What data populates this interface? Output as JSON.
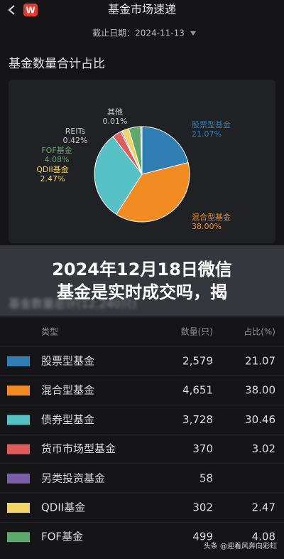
{
  "header": {
    "title": "基金市场速递",
    "date_label": "截止日期：2024-11-13"
  },
  "section_title": "基金数量合计占比",
  "chart_data": {
    "type": "pie",
    "categories": [
      "股票型基金",
      "混合型基金",
      "债券型基金",
      "货币市场型基金",
      "另类投资基金",
      "QDII基金",
      "FOF基金",
      "REITs",
      "其他"
    ],
    "values": [
      21.07,
      38.0,
      30.46,
      3.02,
      0.47,
      2.47,
      4.08,
      0.42,
      0.01
    ],
    "colors": [
      "#2f7fb5",
      "#f28c22",
      "#56c2c6",
      "#e05b5e",
      "#7a5fa8",
      "#f0d566",
      "#5fa86b",
      "#b0b0b0",
      "#8a8a8a"
    ],
    "annotations": [
      {
        "name": "其他",
        "label": "0.01%"
      },
      {
        "name": "REITs",
        "label": "0.42%"
      },
      {
        "name": "FOF基金",
        "label": "4.08%"
      },
      {
        "name": "QDII基金",
        "label": "2.47%"
      },
      {
        "name": "股票型基金",
        "label": "21.07%"
      },
      {
        "name": "混合型基金",
        "label": "38.00%"
      }
    ]
  },
  "overlay": {
    "line1": "2024年12月18日微信",
    "line2": "基金是实时成交吗，揭",
    "behind": "基金数量总计(12,240只)"
  },
  "table": {
    "columns": [
      "类型",
      "数量(只)",
      "占比(%)"
    ],
    "rows": [
      {
        "color": "#2f7fb5",
        "cells": [
          "股票型基金",
          "2,579",
          "21.07"
        ]
      },
      {
        "color": "#f28c22",
        "cells": [
          "混合型基金",
          "4,651",
          "38.00"
        ]
      },
      {
        "color": "#56c2c6",
        "cells": [
          "债券型基金",
          "3,728",
          "30.46"
        ]
      },
      {
        "color": "#e05b5e",
        "cells": [
          "货币市场型基金",
          "370",
          "3.02"
        ]
      },
      {
        "color": "#7a5fa8",
        "cells": [
          "另类投资基金",
          "58"
        ]
      },
      {
        "color": "#f0d566",
        "cells": [
          "QDII基金",
          "302",
          "2.47"
        ]
      },
      {
        "color": "#5fa86b",
        "cells": [
          "FOF基金",
          "499",
          "4.08"
        ]
      }
    ]
  },
  "watermark": "头条 @迎着风奔向彩虹"
}
